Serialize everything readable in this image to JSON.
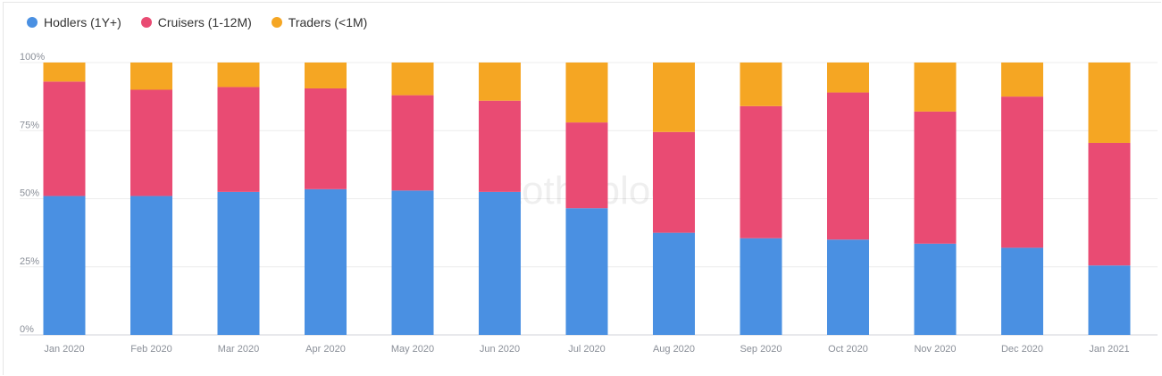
{
  "legend": {
    "items": [
      {
        "label": "Hodlers (1Y+)",
        "color": "#4a90e2"
      },
      {
        "label": "Cruisers (1-12M)",
        "color": "#e94b73"
      },
      {
        "label": "Traders (<1M)",
        "color": "#f5a623"
      }
    ]
  },
  "watermark": "intotheblock",
  "chart_data": {
    "type": "bar",
    "stacked": true,
    "categories": [
      "Jan 2020",
      "Feb 2020",
      "Mar 2020",
      "Apr 2020",
      "May 2020",
      "Jun 2020",
      "Jul 2020",
      "Aug 2020",
      "Sep 2020",
      "Oct 2020",
      "Nov 2020",
      "Dec 2020",
      "Jan 2021"
    ],
    "series": [
      {
        "name": "Hodlers (1Y+)",
        "color": "#4a90e2",
        "values": [
          51,
          51,
          52.5,
          53.5,
          53,
          52.5,
          46.5,
          37.5,
          35.5,
          35,
          33.5,
          32,
          25.5
        ]
      },
      {
        "name": "Cruisers (1-12M)",
        "color": "#e94b73",
        "values": [
          42,
          39,
          38.5,
          37,
          35,
          33.5,
          31.5,
          37,
          48.5,
          54,
          48.5,
          55.5,
          45
        ]
      },
      {
        "name": "Traders (<1M)",
        "color": "#f5a623",
        "values": [
          7,
          10,
          9,
          9.5,
          12,
          14,
          22,
          25.5,
          16,
          11,
          18,
          12.5,
          29.5
        ]
      }
    ],
    "yticks": [
      "0%",
      "25%",
      "50%",
      "75%",
      "100%"
    ],
    "ylim": [
      0,
      100
    ],
    "grid": true,
    "legend_position": "top-left"
  }
}
